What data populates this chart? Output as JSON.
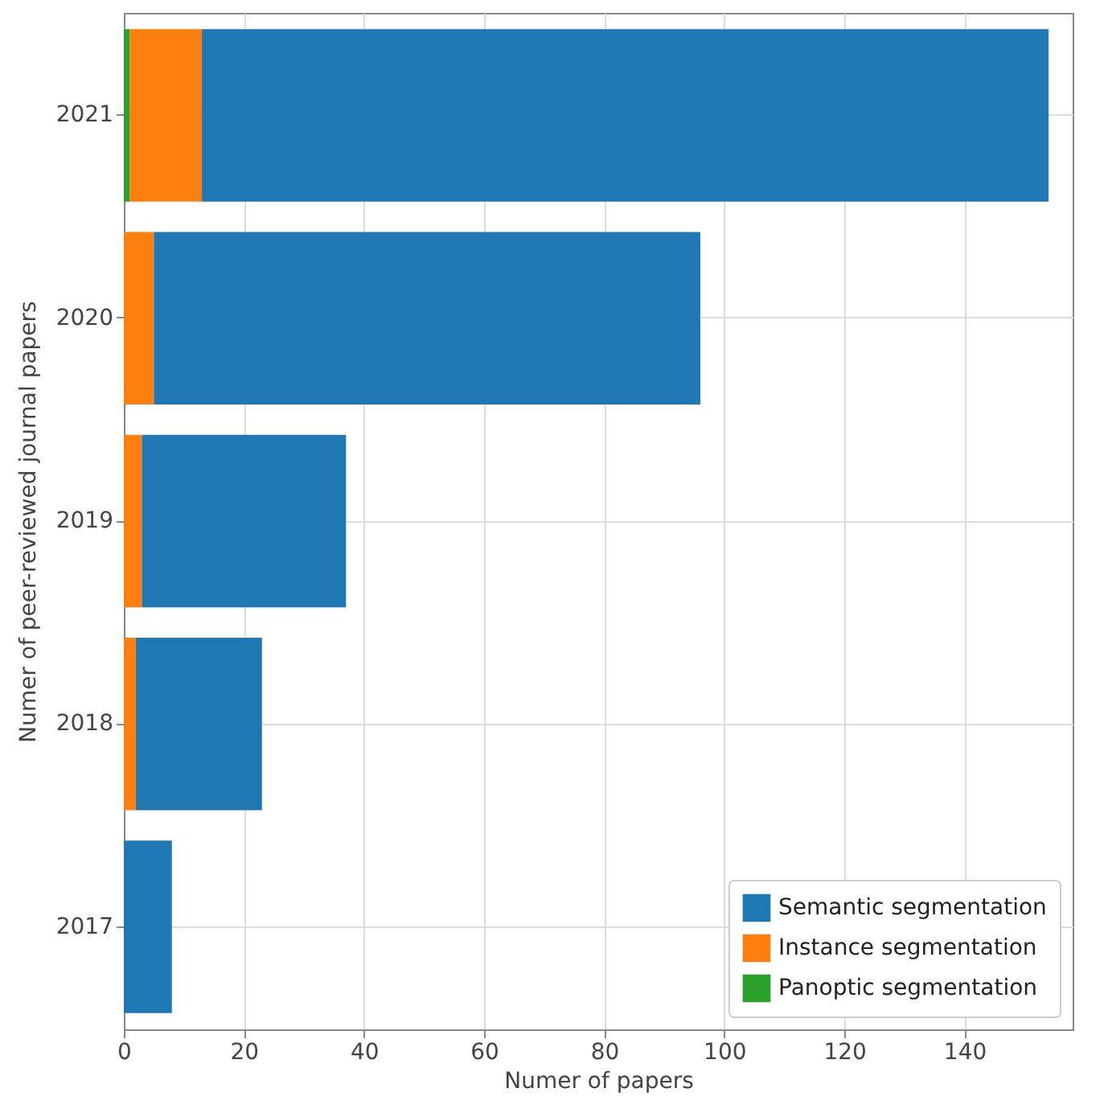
{
  "chart_data": {
    "type": "bar",
    "orientation": "horizontal",
    "stacked": true,
    "xlabel": "Numer of papers",
    "ylabel": "Numer of peer-reviewed journal papers",
    "categories": [
      "2021",
      "2020",
      "2019",
      "2018",
      "2017"
    ],
    "series": [
      {
        "name": "Panoptic segmentation",
        "color": "#2ca02c",
        "values": [
          1,
          0,
          0,
          0,
          0
        ]
      },
      {
        "name": "Instance segmentation",
        "color": "#ff7f0e",
        "values": [
          12,
          5,
          3,
          2,
          0
        ]
      },
      {
        "name": "Semantic segmentation",
        "color": "#1f77b4",
        "values": [
          141,
          91,
          34,
          21,
          8
        ]
      }
    ],
    "xlim": [
      0,
      158
    ],
    "xticks": [
      0,
      20,
      40,
      60,
      80,
      100,
      120,
      140
    ],
    "grid": true,
    "legend": "bottom right"
  }
}
